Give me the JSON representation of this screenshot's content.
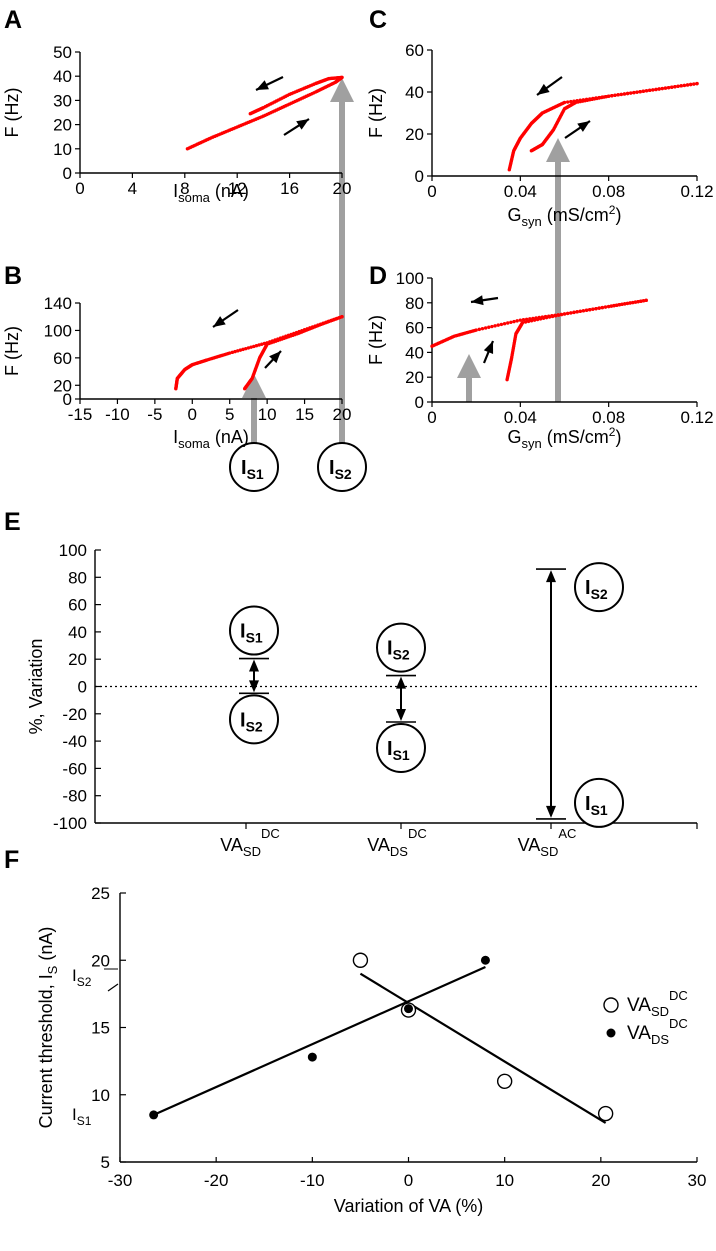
{
  "colors": {
    "curve": "#ff0000",
    "arrow_gray": "#a0a0a0",
    "ink": "#000000"
  },
  "panels": {
    "A": {
      "label": "A"
    },
    "B": {
      "label": "B"
    },
    "C": {
      "label": "C"
    },
    "D": {
      "label": "D"
    },
    "E": {
      "label": "E"
    },
    "F": {
      "label": "F"
    }
  },
  "circle_labels": {
    "is1_main": "I",
    "is1_sub": "S1",
    "is2_main": "I",
    "is2_sub": "S2"
  },
  "chart_data": [
    {
      "id": "A",
      "type": "line",
      "ylabel": "F (Hz)",
      "xlabel_main": "I",
      "xlabel_sub": "soma",
      "xlabel_rest": " (nA)",
      "xlim": [
        0,
        20
      ],
      "ylim": [
        0,
        50
      ],
      "xticks": [
        0,
        4,
        8,
        12,
        16,
        20
      ],
      "yticks": [
        0,
        10,
        20,
        30,
        40,
        50
      ],
      "series": [
        {
          "values": [
            [
              8.2,
              10
            ],
            [
              10,
              14.5
            ],
            [
              12,
              19
            ],
            [
              14,
              23.5
            ],
            [
              16,
              28.5
            ],
            [
              18,
              33.5
            ],
            [
              19.5,
              37.5
            ],
            [
              20,
              39.5
            ]
          ]
        },
        {
          "values": [
            [
              20,
              39.5
            ],
            [
              19,
              39
            ],
            [
              18,
              37
            ],
            [
              16,
              32.5
            ],
            [
              14,
              27
            ],
            [
              13,
              24.5
            ]
          ]
        }
      ]
    },
    {
      "id": "B",
      "type": "line",
      "ylabel": "F (Hz)",
      "xlabel_main": "I",
      "xlabel_sub": "soma",
      "xlabel_rest": " (nA)",
      "xlim": [
        -15,
        20
      ],
      "ylim": [
        0,
        140
      ],
      "xticks": [
        -15,
        -10,
        -5,
        0,
        5,
        10,
        15,
        20
      ],
      "yticks": [
        0,
        20,
        60,
        100,
        140
      ],
      "series": [
        {
          "values": [
            [
              7,
              15
            ],
            [
              8,
              30
            ],
            [
              9,
              60
            ],
            [
              10,
              80
            ],
            [
              14,
              95
            ],
            [
              17,
              108
            ],
            [
              20,
              120
            ]
          ]
        },
        {
          "values": [
            [
              20,
              120
            ],
            [
              15,
              101
            ],
            [
              10,
              82
            ],
            [
              5,
              67
            ],
            [
              2,
              57
            ],
            [
              0,
              50
            ],
            [
              -1,
              43
            ],
            [
              -2,
              30
            ],
            [
              -2.2,
              15
            ]
          ]
        }
      ]
    },
    {
      "id": "C",
      "type": "line",
      "ylabel": "F (Hz)",
      "xlabel_main": "G",
      "xlabel_sub": "syn",
      "xlabel_rest": " (mS/cm",
      "xlabel_sup": "2",
      "xlabel_end": ")",
      "xlim": [
        0,
        0.12
      ],
      "ylim": [
        0,
        60
      ],
      "xticks": [
        0,
        0.04,
        0.08,
        0.12
      ],
      "yticks": [
        0,
        20,
        40,
        60
      ],
      "series": [
        {
          "values": [
            [
              0.045,
              12
            ],
            [
              0.05,
              15
            ],
            [
              0.055,
              22
            ],
            [
              0.06,
              32
            ],
            [
              0.065,
              35
            ],
            [
              0.08,
              38
            ],
            [
              0.1,
              41
            ],
            [
              0.12,
              44
            ]
          ]
        },
        {
          "values": [
            [
              0.12,
              44
            ],
            [
              0.1,
              41
            ],
            [
              0.08,
              38
            ],
            [
              0.06,
              35
            ],
            [
              0.05,
              30
            ],
            [
              0.045,
              25
            ],
            [
              0.04,
              18
            ],
            [
              0.037,
              12
            ],
            [
              0.035,
              3
            ]
          ]
        }
      ]
    },
    {
      "id": "D",
      "type": "line",
      "ylabel": "F (Hz)",
      "xlabel_main": "G",
      "xlabel_sub": "syn",
      "xlabel_rest": " (mS/cm",
      "xlabel_sup": "2",
      "xlabel_end": ")",
      "xlim": [
        0,
        0.12
      ],
      "ylim": [
        0,
        100
      ],
      "xticks": [
        0,
        0.04,
        0.08,
        0.12
      ],
      "yticks": [
        0,
        20,
        40,
        60,
        80,
        100
      ],
      "series": [
        {
          "values": [
            [
              0.034,
              18
            ],
            [
              0.036,
              35
            ],
            [
              0.038,
              55
            ],
            [
              0.041,
              64
            ],
            [
              0.06,
              71
            ],
            [
              0.08,
              77
            ],
            [
              0.097,
              82
            ]
          ]
        },
        {
          "values": [
            [
              0.097,
              82
            ],
            [
              0.08,
              77
            ],
            [
              0.06,
              71
            ],
            [
              0.04,
              66
            ],
            [
              0.02,
              58
            ],
            [
              0.01,
              53
            ],
            [
              0,
              45
            ]
          ]
        }
      ]
    },
    {
      "id": "E",
      "type": "range",
      "ylabel": "%, Variation",
      "ylim": [
        -100,
        100
      ],
      "yticks": [
        -100,
        -80,
        -60,
        -40,
        -20,
        0,
        20,
        40,
        60,
        80,
        100
      ],
      "categories": [
        {
          "main": "VA",
          "sub": "SD",
          "sup": "DC"
        },
        {
          "main": "VA",
          "sub": "DS",
          "sup": "DC"
        },
        {
          "main": "VA",
          "sub": "SD",
          "sup": "AC"
        }
      ],
      "bars": [
        {
          "top": 20.5,
          "bottom": -5,
          "top_label": "S1",
          "bottom_label": "S2"
        },
        {
          "top": 8,
          "bottom": -26,
          "top_label": "S2",
          "bottom_label": "S1"
        },
        {
          "top": 86,
          "bottom": -97,
          "top_label": "S2",
          "bottom_label": "S1"
        }
      ]
    },
    {
      "id": "F",
      "type": "scatter",
      "ylabel_main": "Current threshold, I",
      "ylabel_sub": "S",
      "ylabel_rest": " (nA)",
      "xlabel": "Variation of VA (%)",
      "xlim": [
        -30,
        30
      ],
      "ylim": [
        5,
        25
      ],
      "xticks": [
        -30,
        -20,
        -10,
        0,
        10,
        20,
        30
      ],
      "yticks": [
        5,
        10,
        15,
        20,
        25
      ],
      "ref_labels": [
        {
          "main": "I",
          "sub": "S2",
          "y": 19.5
        },
        {
          "main": "I",
          "sub": "S1",
          "y": 8.5
        }
      ],
      "series": [
        {
          "name_main": "VA",
          "name_sub": "SD",
          "name_sup": "DC",
          "marker": "open",
          "points": [
            [
              -5,
              20
            ],
            [
              0,
              16.3
            ],
            [
              10,
              11
            ],
            [
              20.5,
              8.6
            ]
          ],
          "fit": [
            [
              -5,
              19
            ],
            [
              20.5,
              7.9
            ]
          ]
        },
        {
          "name_main": "VA",
          "name_sub": "DS",
          "name_sup": "DC",
          "marker": "filled",
          "points": [
            [
              -26.5,
              8.5
            ],
            [
              -10,
              12.8
            ],
            [
              0,
              16.4
            ],
            [
              8,
              20
            ]
          ],
          "fit": [
            [
              -26.5,
              8.5
            ],
            [
              8,
              19.5
            ]
          ]
        }
      ]
    }
  ]
}
